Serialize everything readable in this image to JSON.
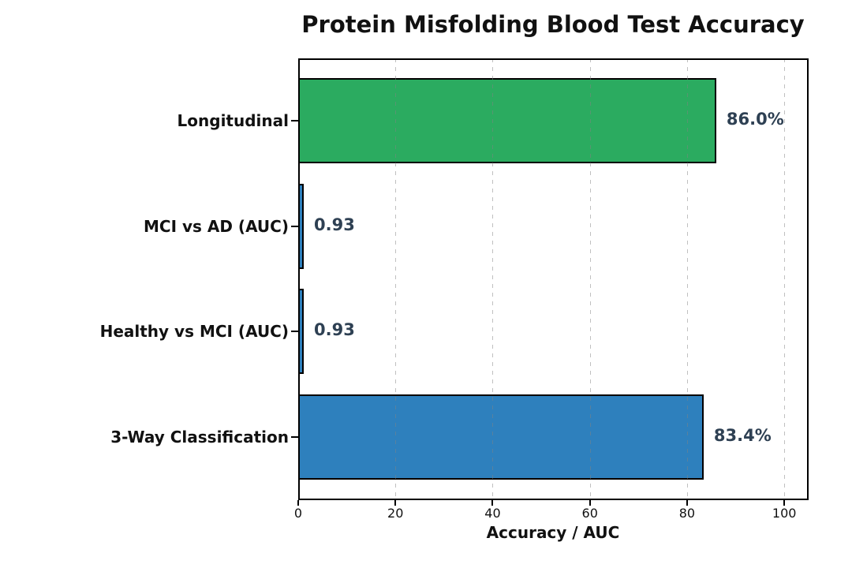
{
  "chart_data": {
    "type": "bar",
    "orientation": "horizontal",
    "title": "Protein Misfolding Blood Test Accuracy",
    "xlabel": "Accuracy / AUC",
    "ylabel": "",
    "xlim": [
      0,
      105
    ],
    "xticks": [
      0,
      20,
      40,
      60,
      80,
      100
    ],
    "grid": {
      "axis": "x",
      "style": "dashed",
      "drawn_above_bars": true
    },
    "bars": [
      {
        "id": "longitudinal",
        "category": "Longitudinal",
        "value": 86.0,
        "label": "86.0%",
        "color": "#2bab60"
      },
      {
        "id": "mci-vs-ad-auc",
        "category": "MCI vs AD (AUC)",
        "value": 0.93,
        "label": "0.93",
        "color": "#2e80bd"
      },
      {
        "id": "healthy-vs-mci-auc",
        "category": "Healthy vs MCI (AUC)",
        "value": 0.93,
        "label": "0.93",
        "color": "#2e80bd"
      },
      {
        "id": "3-way-classification",
        "category": "3-Way Classification",
        "value": 83.4,
        "label": "83.4%",
        "color": "#2e80bd"
      }
    ],
    "colors": {
      "bar_edge": "#000000",
      "value_label": "#2e4053",
      "gridline": "rgba(130,130,130,0.5)",
      "text": "#111111",
      "background": "#ffffff"
    }
  }
}
